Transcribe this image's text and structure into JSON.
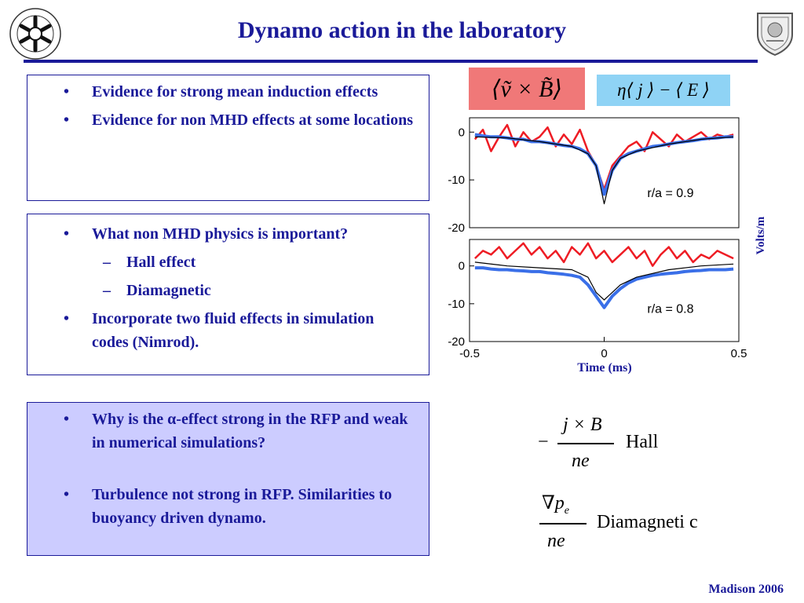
{
  "slide": {
    "title": "Dynamo action in the laboratory",
    "footer": "Madison 2006"
  },
  "box1": {
    "items": [
      {
        "bullet": "•",
        "text": "Evidence for strong mean induction effects"
      },
      {
        "bullet": "•",
        "text": "Evidence for non MHD effects at some locations"
      }
    ]
  },
  "box2": {
    "item1": {
      "bullet": "•",
      "text": "What non MHD physics is important?"
    },
    "sub1": {
      "bullet": "–",
      "text": "Hall effect"
    },
    "sub2": {
      "bullet": "–",
      "text": "Diamagnetic"
    },
    "item2": {
      "bullet": "•",
      "text": "Incorporate two fluid effects in simulation codes (Nimrod)."
    }
  },
  "box3": {
    "item1": {
      "bullet": "•",
      "text": "Why is the α-effect strong in the RFP and weak in numerical simulations?"
    },
    "item2": {
      "bullet": "•",
      "text": "Turbulence not strong in RFP. Similarities  to buoyancy driven dynamo."
    }
  },
  "legend": {
    "red_formula": "⟨ṽ × B̃⟩",
    "blue_formula": "η⟨ j ⟩ − ⟨ E ⟩"
  },
  "equations": {
    "hall": {
      "sign": "−",
      "numerator": "j × B",
      "denominator": "ne",
      "label": "Hall"
    },
    "diamag": {
      "numerator": "∇p",
      "subscript": "e",
      "denominator": "ne",
      "label": "Diamagneti  c"
    }
  },
  "colors": {
    "text": "#1a1a99",
    "box3_bg": "#ccccff",
    "red": "#ee1c24",
    "blue": "#3a6fe8",
    "rule": "#1a1a99"
  },
  "chart_data": [
    {
      "type": "line",
      "annotation": "r/a = 0.9",
      "xlabel": "Time (ms)",
      "ylabel": "Volts/m",
      "xlim": [
        -0.5,
        0.5
      ],
      "ylim": [
        -20,
        3
      ],
      "yticks": [
        "0",
        "-10",
        "-20"
      ],
      "series": [
        {
          "color": "#ee1c24",
          "x": [
            -0.48,
            -0.45,
            -0.42,
            -0.39,
            -0.36,
            -0.33,
            -0.3,
            -0.27,
            -0.24,
            -0.21,
            -0.18,
            -0.15,
            -0.12,
            -0.09,
            -0.06,
            -0.03,
            0,
            0.03,
            0.06,
            0.09,
            0.12,
            0.15,
            0.18,
            0.21,
            0.24,
            0.27,
            0.3,
            0.33,
            0.36,
            0.39,
            0.42,
            0.45,
            0.48
          ],
          "y": [
            -1.5,
            0.5,
            -4,
            -1,
            1.5,
            -3,
            0,
            -2,
            -1,
            1,
            -3,
            -0.5,
            -2.5,
            0.5,
            -4,
            -7,
            -12,
            -7,
            -5,
            -3,
            -2,
            -4,
            0,
            -1.5,
            -3,
            -0.5,
            -2,
            -1,
            0,
            -1.5,
            -0.5,
            -1,
            -0.5
          ]
        },
        {
          "color": "#3a6fe8",
          "x": [
            -0.48,
            -0.45,
            -0.42,
            -0.39,
            -0.36,
            -0.33,
            -0.3,
            -0.27,
            -0.24,
            -0.21,
            -0.18,
            -0.15,
            -0.12,
            -0.09,
            -0.06,
            -0.03,
            0,
            0.03,
            0.06,
            0.09,
            0.12,
            0.15,
            0.18,
            0.21,
            0.24,
            0.27,
            0.3,
            0.33,
            0.36,
            0.39,
            0.42,
            0.45,
            0.48
          ],
          "y": [
            -0.5,
            -0.8,
            -1,
            -1,
            -1.2,
            -1.5,
            -1.5,
            -2,
            -2,
            -2.2,
            -2.5,
            -2.8,
            -3,
            -3.5,
            -4.5,
            -7,
            -13,
            -8,
            -5.5,
            -4.5,
            -4,
            -3.5,
            -3,
            -2.8,
            -2.5,
            -2.2,
            -2,
            -1.8,
            -1.5,
            -1.3,
            -1.2,
            -1,
            -1
          ]
        },
        {
          "color": "#000000",
          "x": [
            -0.48,
            -0.36,
            -0.24,
            -0.12,
            -0.06,
            -0.03,
            0,
            0.03,
            0.06,
            0.12,
            0.24,
            0.36,
            0.48
          ],
          "y": [
            -1,
            -1.2,
            -2,
            -3,
            -4.5,
            -7,
            -15,
            -8,
            -5.5,
            -4,
            -2.5,
            -1.5,
            -1
          ]
        }
      ]
    },
    {
      "type": "line",
      "annotation": "r/a = 0.8",
      "xlabel": "Time (ms)",
      "ylabel": "Volts/m",
      "xlim": [
        -0.5,
        0.5
      ],
      "ylim": [
        -20,
        7
      ],
      "xticks": [
        "-0.5",
        "0",
        "0.5"
      ],
      "yticks": [
        "0",
        "-10",
        "-20"
      ],
      "series": [
        {
          "color": "#ee1c24",
          "x": [
            -0.48,
            -0.45,
            -0.42,
            -0.39,
            -0.36,
            -0.33,
            -0.3,
            -0.27,
            -0.24,
            -0.21,
            -0.18,
            -0.15,
            -0.12,
            -0.09,
            -0.06,
            -0.03,
            0,
            0.03,
            0.06,
            0.09,
            0.12,
            0.15,
            0.18,
            0.21,
            0.24,
            0.27,
            0.3,
            0.33,
            0.36,
            0.39,
            0.42,
            0.45,
            0.48
          ],
          "y": [
            2,
            4,
            3,
            5,
            2,
            4,
            6,
            3,
            5,
            2,
            4,
            1,
            5,
            3,
            6,
            2,
            4,
            1,
            3,
            5,
            2,
            4,
            0,
            3,
            5,
            2,
            4,
            1,
            3,
            2,
            4,
            3,
            2
          ]
        },
        {
          "color": "#3a6fe8",
          "x": [
            -0.48,
            -0.45,
            -0.42,
            -0.39,
            -0.36,
            -0.33,
            -0.3,
            -0.27,
            -0.24,
            -0.21,
            -0.18,
            -0.15,
            -0.12,
            -0.09,
            -0.06,
            -0.03,
            0,
            0.03,
            0.06,
            0.09,
            0.12,
            0.15,
            0.18,
            0.21,
            0.24,
            0.27,
            0.3,
            0.33,
            0.36,
            0.39,
            0.42,
            0.45,
            0.48
          ],
          "y": [
            -0.5,
            -0.5,
            -0.8,
            -1,
            -1,
            -1.2,
            -1.3,
            -1.5,
            -1.5,
            -1.8,
            -2,
            -2.2,
            -2.5,
            -3,
            -5,
            -8,
            -11,
            -8,
            -6,
            -4.5,
            -3.5,
            -3,
            -2.5,
            -2.2,
            -2,
            -1.8,
            -1.5,
            -1.3,
            -1.2,
            -1,
            -1,
            -1,
            -0.8
          ]
        },
        {
          "color": "#000000",
          "x": [
            -0.48,
            -0.36,
            -0.24,
            -0.12,
            -0.06,
            -0.03,
            0,
            0.03,
            0.06,
            0.12,
            0.24,
            0.36,
            0.48
          ],
          "y": [
            1,
            0,
            -0.5,
            -1,
            -3,
            -7,
            -9,
            -7,
            -5,
            -3,
            -1,
            0,
            0.5
          ]
        }
      ]
    }
  ]
}
